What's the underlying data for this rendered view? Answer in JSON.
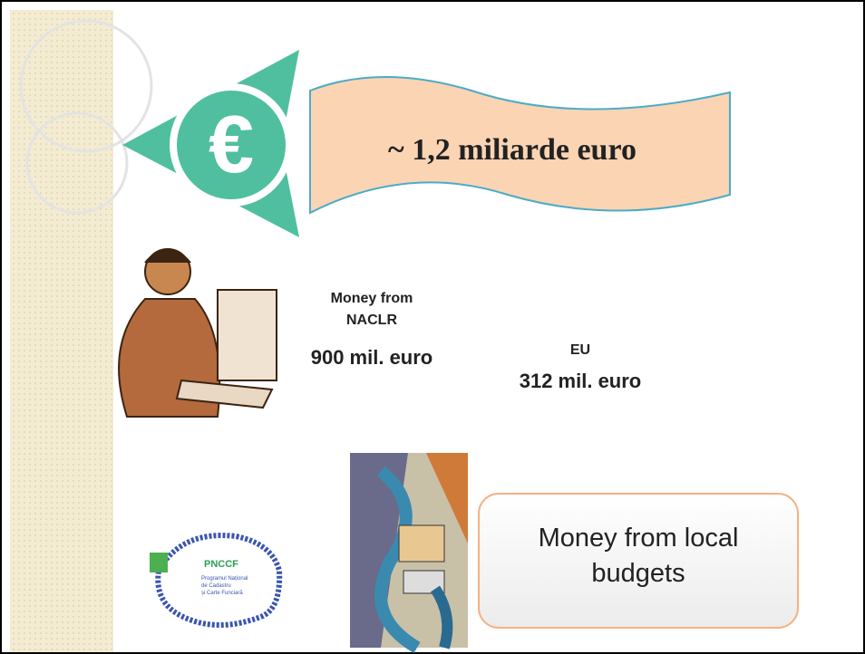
{
  "slide": {
    "banner": "~ 1,2 miliarde euro",
    "naclr": {
      "lines": [
        "Money from",
        "NACLR"
      ],
      "amount": "900 mil. euro"
    },
    "eu": {
      "label": "EU",
      "amount": "312 mil. euro"
    },
    "local": {
      "lines": [
        "Money from local",
        "budgets"
      ]
    },
    "logo": {
      "name": "PNCCF",
      "lines": [
        "Programul Național",
        "de Cadastru",
        "și Carte Funciară"
      ]
    }
  }
}
